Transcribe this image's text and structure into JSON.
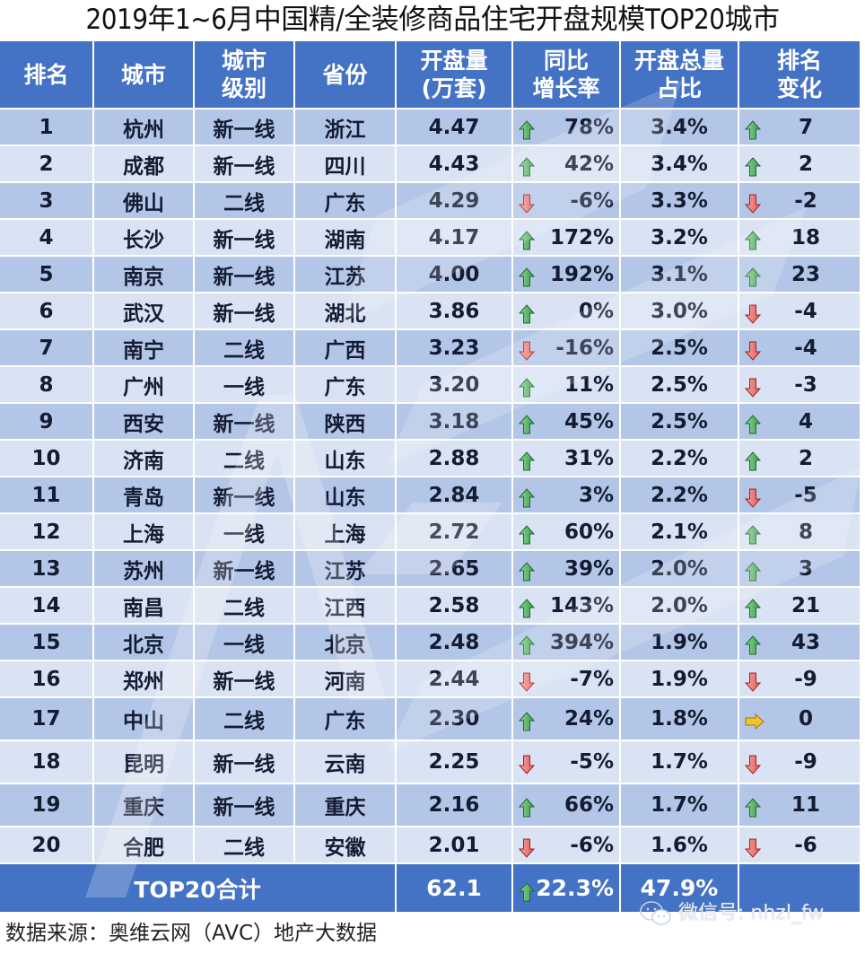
{
  "title": "2019年1~6月中国精/全装修商品住宅开盘规模TOP20城市",
  "colors": {
    "header_bg": "#4472c4",
    "row_odd_bg": "#b4c6e7",
    "row_even_bg": "#dae3f3",
    "up_arrow": "#3a9a4a",
    "down_arrow": "#e05a5a",
    "flat_arrow": "#f2c230"
  },
  "headers": {
    "rank": "排名",
    "city": "城市",
    "tier_line1": "城市",
    "tier_line2": "级别",
    "province": "省份",
    "volume_line1": "开盘量",
    "volume_line2": "(万套)",
    "yoy_line1": "同比",
    "yoy_line2": "增长率",
    "share_line1": "开盘总量",
    "share_line2": "占比",
    "rank_change_line1": "排名",
    "rank_change_line2": "变化"
  },
  "rows": [
    {
      "rank": "1",
      "city": "杭州",
      "tier": "新一线",
      "province": "浙江",
      "volume": "4.47",
      "yoy_dir": "up",
      "yoy": "78%",
      "share": "3.4%",
      "rc_dir": "up",
      "rank_change": "7"
    },
    {
      "rank": "2",
      "city": "成都",
      "tier": "新一线",
      "province": "四川",
      "volume": "4.43",
      "yoy_dir": "up",
      "yoy": "42%",
      "share": "3.4%",
      "rc_dir": "up",
      "rank_change": "2"
    },
    {
      "rank": "3",
      "city": "佛山",
      "tier": "二线",
      "province": "广东",
      "volume": "4.29",
      "yoy_dir": "down",
      "yoy": "-6%",
      "share": "3.3%",
      "rc_dir": "down",
      "rank_change": "-2"
    },
    {
      "rank": "4",
      "city": "长沙",
      "tier": "新一线",
      "province": "湖南",
      "volume": "4.17",
      "yoy_dir": "up",
      "yoy": "172%",
      "share": "3.2%",
      "rc_dir": "up",
      "rank_change": "18"
    },
    {
      "rank": "5",
      "city": "南京",
      "tier": "新一线",
      "province": "江苏",
      "volume": "4.00",
      "yoy_dir": "up",
      "yoy": "192%",
      "share": "3.1%",
      "rc_dir": "up",
      "rank_change": "23"
    },
    {
      "rank": "6",
      "city": "武汉",
      "tier": "新一线",
      "province": "湖北",
      "volume": "3.86",
      "yoy_dir": "up",
      "yoy": "0%",
      "share": "3.0%",
      "rc_dir": "down",
      "rank_change": "-4"
    },
    {
      "rank": "7",
      "city": "南宁",
      "tier": "二线",
      "province": "广西",
      "volume": "3.23",
      "yoy_dir": "down",
      "yoy": "-16%",
      "share": "2.5%",
      "rc_dir": "down",
      "rank_change": "-4"
    },
    {
      "rank": "8",
      "city": "广州",
      "tier": "一线",
      "province": "广东",
      "volume": "3.20",
      "yoy_dir": "up",
      "yoy": "11%",
      "share": "2.5%",
      "rc_dir": "down",
      "rank_change": "-3"
    },
    {
      "rank": "9",
      "city": "西安",
      "tier": "新一线",
      "province": "陕西",
      "volume": "3.18",
      "yoy_dir": "up",
      "yoy": "45%",
      "share": "2.5%",
      "rc_dir": "up",
      "rank_change": "4"
    },
    {
      "rank": "10",
      "city": "济南",
      "tier": "二线",
      "province": "山东",
      "volume": "2.88",
      "yoy_dir": "up",
      "yoy": "31%",
      "share": "2.2%",
      "rc_dir": "up",
      "rank_change": "2"
    },
    {
      "rank": "11",
      "city": "青岛",
      "tier": "新一线",
      "province": "山东",
      "volume": "2.84",
      "yoy_dir": "up",
      "yoy": "3%",
      "share": "2.2%",
      "rc_dir": "down",
      "rank_change": "-5"
    },
    {
      "rank": "12",
      "city": "上海",
      "tier": "一线",
      "province": "上海",
      "volume": "2.72",
      "yoy_dir": "up",
      "yoy": "60%",
      "share": "2.1%",
      "rc_dir": "up",
      "rank_change": "8"
    },
    {
      "rank": "13",
      "city": "苏州",
      "tier": "新一线",
      "province": "江苏",
      "volume": "2.65",
      "yoy_dir": "up",
      "yoy": "39%",
      "share": "2.0%",
      "rc_dir": "up",
      "rank_change": "3"
    },
    {
      "rank": "14",
      "city": "南昌",
      "tier": "二线",
      "province": "江西",
      "volume": "2.58",
      "yoy_dir": "up",
      "yoy": "143%",
      "share": "2.0%",
      "rc_dir": "up",
      "rank_change": "21"
    },
    {
      "rank": "15",
      "city": "北京",
      "tier": "一线",
      "province": "北京",
      "volume": "2.48",
      "yoy_dir": "up",
      "yoy": "394%",
      "share": "1.9%",
      "rc_dir": "up",
      "rank_change": "43"
    },
    {
      "rank": "16",
      "city": "郑州",
      "tier": "新一线",
      "province": "河南",
      "volume": "2.44",
      "yoy_dir": "down",
      "yoy": "-7%",
      "share": "1.9%",
      "rc_dir": "down",
      "rank_change": "-9"
    },
    {
      "rank": "17",
      "city": "中山",
      "tier": "二线",
      "province": "广东",
      "volume": "2.30",
      "yoy_dir": "up",
      "yoy": "24%",
      "share": "1.8%",
      "rc_dir": "flat",
      "rank_change": "0"
    },
    {
      "rank": "18",
      "city": "昆明",
      "tier": "新一线",
      "province": "云南",
      "volume": "2.25",
      "yoy_dir": "down",
      "yoy": "-5%",
      "share": "1.7%",
      "rc_dir": "down",
      "rank_change": "-9"
    },
    {
      "rank": "19",
      "city": "重庆",
      "tier": "新一线",
      "province": "重庆",
      "volume": "2.16",
      "yoy_dir": "up",
      "yoy": "66%",
      "share": "1.7%",
      "rc_dir": "up",
      "rank_change": "11"
    },
    {
      "rank": "20",
      "city": "合肥",
      "tier": "二线",
      "province": "安徽",
      "volume": "2.01",
      "yoy_dir": "down",
      "yoy": "-6%",
      "share": "1.6%",
      "rc_dir": "down",
      "rank_change": "-6"
    }
  ],
  "total": {
    "label": "TOP20合计",
    "volume": "62.1",
    "yoy_dir": "up",
    "yoy": "22.3%",
    "share": "47.9%"
  },
  "footer": {
    "source": "数据来源：奥维云网（AVC）地产大数据",
    "wechat": "微信号: nhzl_fw"
  },
  "watermark": "AVC 奥维云网 ALL VIEW CLOUD",
  "chart_data": {
    "type": "table",
    "title": "2019年1~6月中国精/全装修商品住宅开盘规模TOP20城市",
    "columns": [
      "排名",
      "城市",
      "城市级别",
      "省份",
      "开盘量(万套)",
      "同比增长率",
      "开盘总量占比",
      "排名变化"
    ],
    "rows": [
      [
        1,
        "杭州",
        "新一线",
        "浙江",
        4.47,
        "78%",
        "3.4%",
        7
      ],
      [
        2,
        "成都",
        "新一线",
        "四川",
        4.43,
        "42%",
        "3.4%",
        2
      ],
      [
        3,
        "佛山",
        "二线",
        "广东",
        4.29,
        "-6%",
        "3.3%",
        -2
      ],
      [
        4,
        "长沙",
        "新一线",
        "湖南",
        4.17,
        "172%",
        "3.2%",
        18
      ],
      [
        5,
        "南京",
        "新一线",
        "江苏",
        4.0,
        "192%",
        "3.1%",
        23
      ],
      [
        6,
        "武汉",
        "新一线",
        "湖北",
        3.86,
        "0%",
        "3.0%",
        -4
      ],
      [
        7,
        "南宁",
        "二线",
        "广西",
        3.23,
        "-16%",
        "2.5%",
        -4
      ],
      [
        8,
        "广州",
        "一线",
        "广东",
        3.2,
        "11%",
        "2.5%",
        -3
      ],
      [
        9,
        "西安",
        "新一线",
        "陕西",
        3.18,
        "45%",
        "2.5%",
        4
      ],
      [
        10,
        "济南",
        "二线",
        "山东",
        2.88,
        "31%",
        "2.2%",
        2
      ],
      [
        11,
        "青岛",
        "新一线",
        "山东",
        2.84,
        "3%",
        "2.2%",
        -5
      ],
      [
        12,
        "上海",
        "一线",
        "上海",
        2.72,
        "60%",
        "2.1%",
        8
      ],
      [
        13,
        "苏州",
        "新一线",
        "江苏",
        2.65,
        "39%",
        "2.0%",
        3
      ],
      [
        14,
        "南昌",
        "二线",
        "江西",
        2.58,
        "143%",
        "2.0%",
        21
      ],
      [
        15,
        "北京",
        "一线",
        "北京",
        2.48,
        "394%",
        "1.9%",
        43
      ],
      [
        16,
        "郑州",
        "新一线",
        "河南",
        2.44,
        "-7%",
        "1.9%",
        -9
      ],
      [
        17,
        "中山",
        "二线",
        "广东",
        2.3,
        "24%",
        "1.8%",
        0
      ],
      [
        18,
        "昆明",
        "新一线",
        "云南",
        2.25,
        "-5%",
        "1.7%",
        -9
      ],
      [
        19,
        "重庆",
        "新一线",
        "重庆",
        2.16,
        "66%",
        "1.7%",
        11
      ],
      [
        20,
        "合肥",
        "二线",
        "安徽",
        2.01,
        "-6%",
        "1.6%",
        -6
      ]
    ],
    "total": [
      "TOP20合计",
      62.1,
      "22.3%",
      "47.9%"
    ],
    "source": "数据来源：奥维云网（AVC）地产大数据"
  }
}
